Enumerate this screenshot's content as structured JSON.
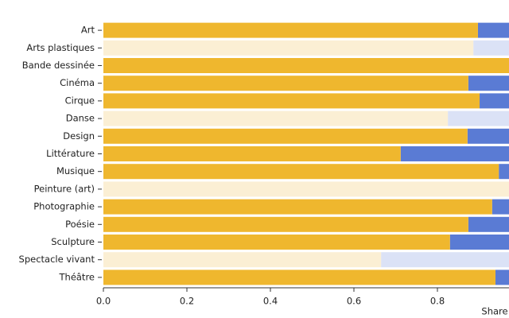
{
  "chart_data": {
    "type": "stacked-bar-horizontal",
    "x_label": "Share",
    "categories": [
      "Art",
      "Arts plastiques",
      "Bande dessinée",
      "Cinéma",
      "Cirque",
      "Danse",
      "Design",
      "Littérature",
      "Musique",
      "Peinture (art)",
      "Photographie",
      "Poésie",
      "Sculpture",
      "Spectacle vivant",
      "Théâtre"
    ],
    "highlight": [
      true,
      false,
      true,
      true,
      true,
      false,
      true,
      true,
      true,
      false,
      true,
      true,
      true,
      false,
      true
    ],
    "series": [
      {
        "color": "#efb72e",
        "faded_color": "#fbefd4",
        "values": [
          0.897,
          0.886,
          1.0,
          0.874,
          0.901,
          0.825,
          0.872,
          0.712,
          0.947,
          1.0,
          0.931,
          0.874,
          0.83,
          0.665,
          0.939
        ]
      },
      {
        "color": "#5a7bd4",
        "faded_color": "#dbe2f6",
        "values": [
          0.103,
          0.114,
          0.0,
          0.126,
          0.099,
          0.175,
          0.128,
          0.288,
          0.053,
          0.0,
          0.069,
          0.126,
          0.17,
          0.335,
          0.061
        ]
      }
    ],
    "xlim": [
      0,
      1
    ],
    "xticks": [
      {
        "value": 0,
        "label": "0.0"
      },
      0.2,
      0.4,
      0.6,
      0.8
    ]
  }
}
